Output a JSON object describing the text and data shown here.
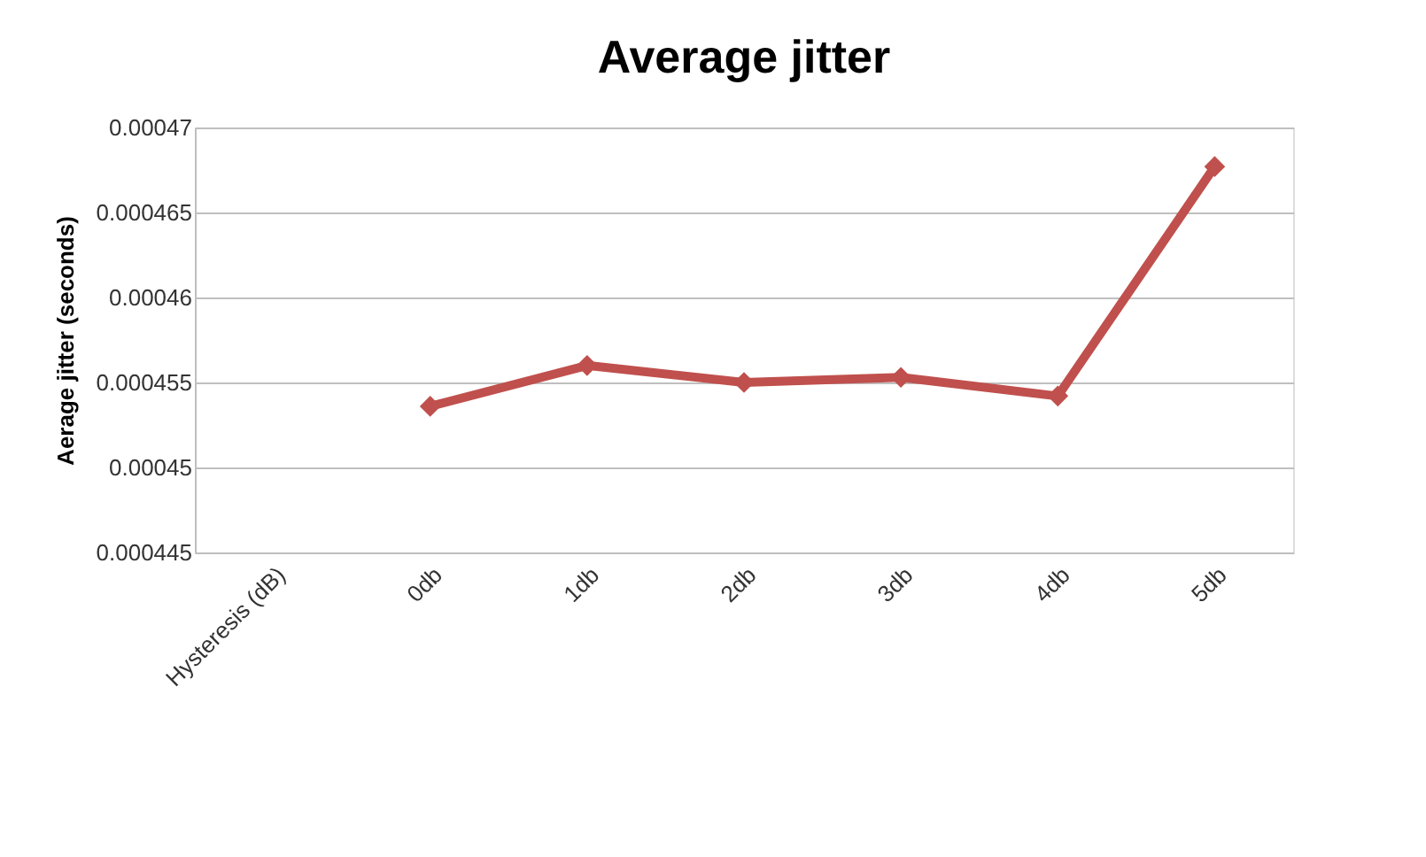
{
  "chart_data": {
    "type": "line",
    "title": "Average jitter",
    "ylabel": "Aerage jitter (seconds)",
    "categories": [
      "Hysteresis (dB)",
      "0db",
      "1db",
      "2db",
      "3db",
      "4db",
      "5db"
    ],
    "series": [
      {
        "color": "#c0504d",
        "values": [
          null,
          0.0004536,
          0.000456,
          0.000455,
          0.0004553,
          0.0004542,
          0.0004677
        ]
      }
    ],
    "ylim": [
      0.000445,
      0.00047
    ],
    "yticks": [
      0.000445,
      0.00045,
      0.000455,
      0.00046,
      0.000465,
      0.00047
    ],
    "grid": "y",
    "marker": "diamond",
    "line_style": "solid"
  }
}
